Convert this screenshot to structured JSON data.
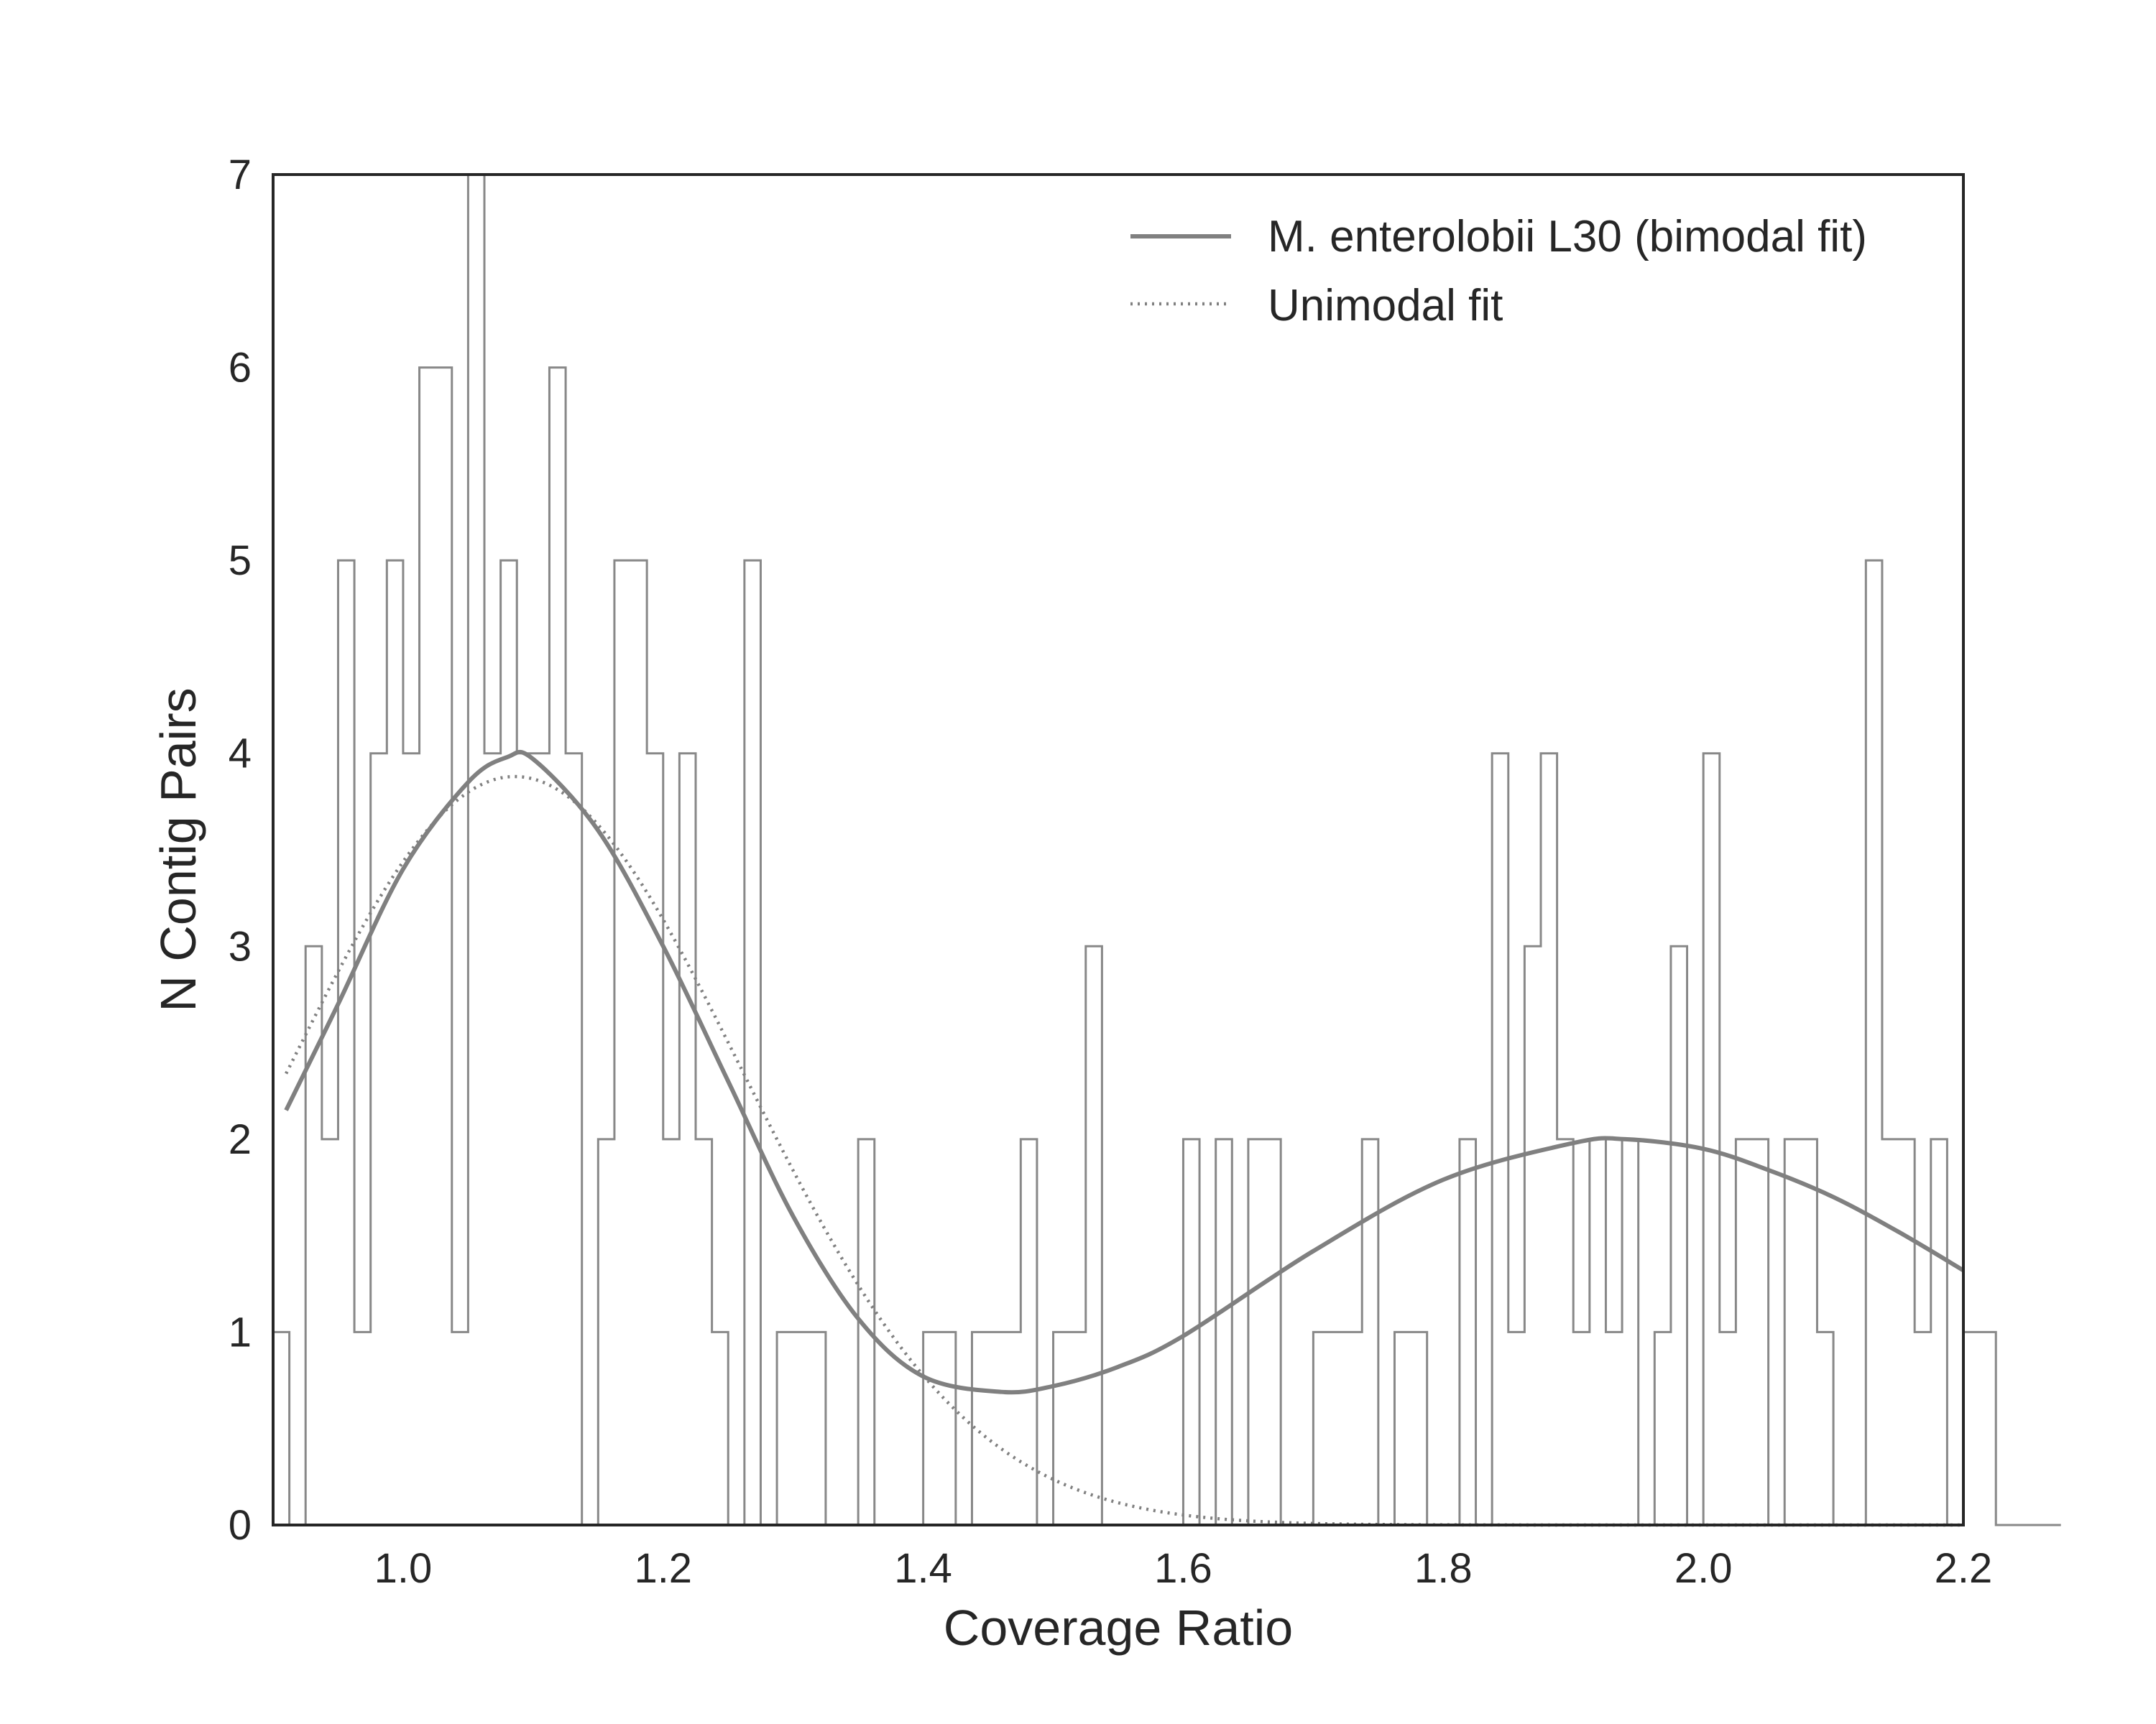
{
  "chart_data": {
    "type": "histogram",
    "xlabel": "Coverage Ratio",
    "ylabel": "N Contig Pairs",
    "xlim": [
      0.9,
      2.2
    ],
    "ylim": [
      0,
      7
    ],
    "xticks": [
      "1.0",
      "1.2",
      "1.4",
      "1.6",
      "1.8",
      "2.0",
      "2.2"
    ],
    "yticks": [
      "0",
      "1",
      "2",
      "3",
      "4",
      "5",
      "6",
      "7"
    ],
    "grid": false,
    "legend_position": "top-right",
    "histogram": {
      "bin_start": 0.9,
      "bin_width": 0.0125,
      "counts": [
        1,
        0,
        3,
        2,
        5,
        1,
        4,
        5,
        4,
        6,
        6,
        1,
        7,
        4,
        5,
        4,
        4,
        6,
        4,
        0,
        2,
        5,
        5,
        4,
        2,
        4,
        2,
        1,
        0,
        5,
        0,
        1,
        1,
        1,
        0,
        0,
        2,
        0,
        0,
        0,
        1,
        1,
        0,
        1,
        1,
        1,
        2,
        0,
        1,
        1,
        3,
        0,
        0,
        0,
        0,
        0,
        2,
        0,
        2,
        0,
        2,
        2,
        0,
        0,
        1,
        1,
        1,
        2,
        0,
        1,
        1,
        0,
        0,
        2,
        0,
        4,
        1,
        3,
        4,
        2,
        1,
        2,
        1,
        2,
        0,
        1,
        3,
        0,
        4,
        1,
        2,
        2,
        0,
        2,
        2,
        1,
        0,
        0,
        5,
        2,
        2,
        1,
        2,
        0,
        1,
        1,
        0,
        0,
        0,
        0
      ],
      "color": "#888888"
    },
    "series": [
      {
        "name": "M. enterolobii L30 (bimodal fit)",
        "style": "solid",
        "color": "#808080",
        "x": [
          0.91,
          0.95,
          1.0,
          1.05,
          1.08,
          1.1,
          1.15,
          1.2,
          1.25,
          1.3,
          1.35,
          1.4,
          1.46,
          1.5,
          1.55,
          1.6,
          1.7,
          1.8,
          1.9,
          1.94,
          2.0,
          2.05,
          2.1,
          2.15,
          2.2
        ],
        "y": [
          2.15,
          2.7,
          3.4,
          3.85,
          3.98,
          3.97,
          3.6,
          3.0,
          2.3,
          1.6,
          1.07,
          0.77,
          0.69,
          0.72,
          0.82,
          0.98,
          1.42,
          1.79,
          1.98,
          2.0,
          1.95,
          1.84,
          1.7,
          1.52,
          1.32
        ]
      },
      {
        "name": "Unimodal fit",
        "style": "dotted",
        "color": "#808080",
        "mean": 1.086,
        "sd": 0.175,
        "amplitude": 3.88
      }
    ]
  }
}
